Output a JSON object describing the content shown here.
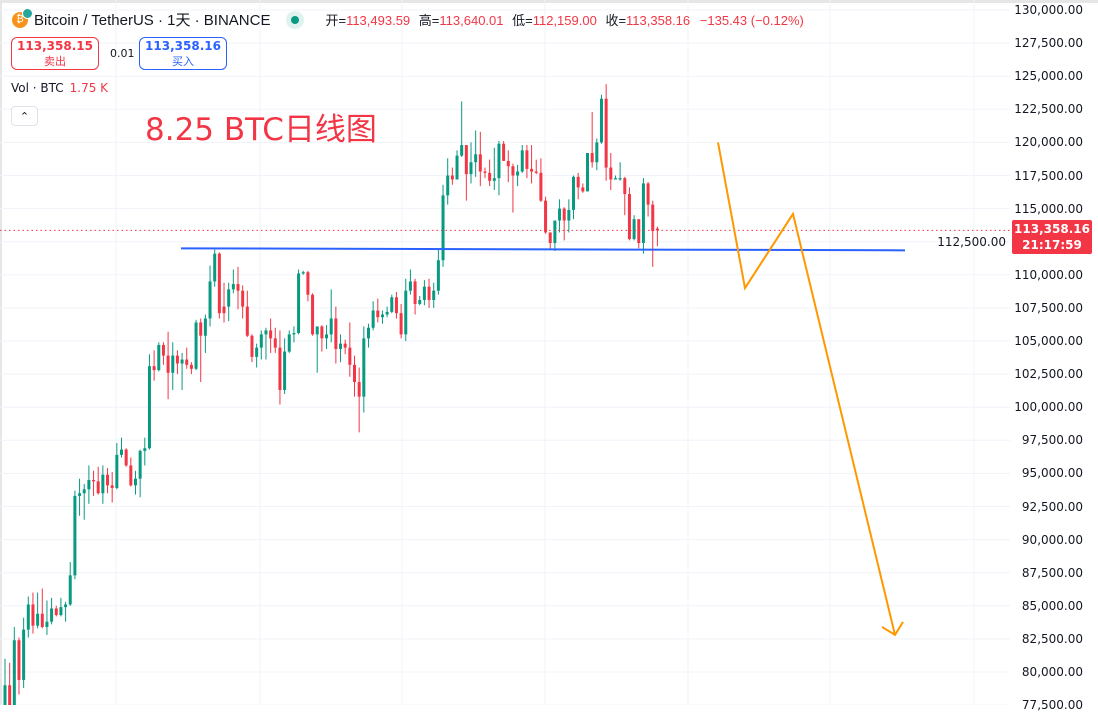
{
  "header": {
    "symbol_title": "Bitcoin / TetherUS · 1天 · BINANCE",
    "ohlc": [
      {
        "label": "开=",
        "value": "113,493.59"
      },
      {
        "label": "高=",
        "value": "113,640.01"
      },
      {
        "label": "低=",
        "value": "112,159.00"
      },
      {
        "label": "收=",
        "value": "113,358.16"
      }
    ],
    "change": "−135.43 (−0.12%)",
    "market_status": "open"
  },
  "trade": {
    "sell_price": "113,358.15",
    "sell_label": "卖出",
    "spread": "0.01",
    "buy_price": "113,358.16",
    "buy_label": "买入"
  },
  "volume": {
    "label": "Vol · BTC",
    "value": "1.75 K"
  },
  "annotation_text": "8.25 BTC日线图",
  "price_tag": {
    "price": "113,358.16",
    "countdown": "21:17:59"
  },
  "colors": {
    "up": "#089981",
    "down": "#f23645",
    "support_line": "#2962ff",
    "projection": "#ff9800",
    "accent": "#f23645"
  },
  "chart_data": {
    "type": "candlestick",
    "interval": "1天",
    "ylim": [
      77500,
      130000
    ],
    "y_tick_labels": [
      "130,000.00",
      "127,500.00",
      "125,000.00",
      "122,500.00",
      "120,000.00",
      "117,500.00",
      "115,000.00",
      "112,500.00",
      "110,000.00",
      "107,500.00",
      "105,000.00",
      "102,500.00",
      "100,000.00",
      "97,500.00",
      "95,000.00",
      "92,500.00",
      "90,000.00",
      "87,500.00",
      "85,000.00",
      "82,500.00",
      "80,000.00",
      "77,500.00"
    ],
    "grid": true,
    "last_price": 113358.16,
    "support_level": 112000,
    "projection_prices": [
      120000,
      109000,
      114600,
      82800
    ],
    "candles_ohlc": [
      [
        77500,
        81000,
        77400,
        79000
      ],
      [
        79000,
        80700,
        77400,
        77500
      ],
      [
        77500,
        83400,
        77400,
        82400
      ],
      [
        82400,
        82600,
        78300,
        79400
      ],
      [
        79400,
        84100,
        78800,
        83200
      ],
      [
        83200,
        85700,
        82600,
        85100
      ],
      [
        85100,
        86000,
        82900,
        83500
      ],
      [
        83500,
        86000,
        83300,
        84400
      ],
      [
        84400,
        86300,
        83300,
        83400
      ],
      [
        83400,
        85400,
        82800,
        83800
      ],
      [
        83800,
        85600,
        83600,
        84800
      ],
      [
        84800,
        85000,
        84200,
        84300
      ],
      [
        84300,
        85600,
        84200,
        84900
      ],
      [
        84900,
        85300,
        83800,
        85100
      ],
      [
        85100,
        88300,
        85000,
        87300
      ],
      [
        87300,
        93700,
        87000,
        93300
      ],
      [
        93300,
        94600,
        91800,
        93500
      ],
      [
        93500,
        94200,
        91500,
        93800
      ],
      [
        93800,
        95600,
        92700,
        94500
      ],
      [
        94500,
        95200,
        93300,
        94400
      ],
      [
        94400,
        95500,
        93400,
        93500
      ],
      [
        93500,
        95600,
        92700,
        94900
      ],
      [
        94900,
        95400,
        93500,
        94100
      ],
      [
        94100,
        95100,
        92800,
        93900
      ],
      [
        93900,
        97300,
        93800,
        96400
      ],
      [
        96400,
        97700,
        96200,
        96800
      ],
      [
        96800,
        96900,
        95500,
        95600
      ],
      [
        95600,
        96200,
        94000,
        94100
      ],
      [
        94100,
        95200,
        93400,
        94600
      ],
      [
        94600,
        96800,
        93200,
        96700
      ],
      [
        96700,
        97700,
        95600,
        96900
      ],
      [
        96900,
        104000,
        96800,
        103100
      ],
      [
        103100,
        104300,
        102000,
        102800
      ],
      [
        102800,
        104900,
        102700,
        104700
      ],
      [
        104700,
        104900,
        103200,
        103900
      ],
      [
        103900,
        105700,
        100600,
        102600
      ],
      [
        102600,
        104900,
        101300,
        103900
      ],
      [
        103900,
        104300,
        102500,
        103300
      ],
      [
        103300,
        104100,
        101300,
        103600
      ],
      [
        103600,
        104500,
        102900,
        103200
      ],
      [
        103200,
        103400,
        102500,
        102900
      ],
      [
        102900,
        106600,
        102800,
        106400
      ],
      [
        106400,
        106700,
        101900,
        105400
      ],
      [
        105400,
        107000,
        104100,
        106700
      ],
      [
        106700,
        110700,
        106100,
        109500
      ],
      [
        109500,
        111900,
        109100,
        111600
      ],
      [
        111600,
        111700,
        106700,
        107100
      ],
      [
        107600,
        109400,
        106400,
        107100
      ],
      [
        107600,
        109400,
        106500,
        108900
      ],
      [
        108900,
        110400,
        108600,
        109300
      ],
      [
        109300,
        110600,
        107400,
        108800
      ],
      [
        108800,
        109200,
        106700,
        107600
      ],
      [
        107600,
        108800,
        105300,
        105400
      ],
      [
        105400,
        105500,
        103400,
        103800
      ],
      [
        103800,
        104800,
        103000,
        104500
      ],
      [
        104500,
        105800,
        103600,
        105500
      ],
      [
        105500,
        106000,
        103600,
        105800
      ],
      [
        105800,
        106700,
        104100,
        105200
      ],
      [
        105200,
        106000,
        104100,
        104500
      ],
      [
        104500,
        105800,
        100200,
        101300
      ],
      [
        101300,
        105200,
        101000,
        104200
      ],
      [
        104200,
        105800,
        104100,
        105500
      ],
      [
        105500,
        106100,
        104900,
        105600
      ],
      [
        105600,
        110400,
        105500,
        110100
      ],
      [
        110100,
        110300,
        110000,
        110200
      ],
      [
        110200,
        110300,
        108000,
        108500
      ],
      [
        108500,
        108600,
        105400,
        105500
      ],
      [
        105500,
        106100,
        102600,
        106100
      ],
      [
        106100,
        106200,
        104200,
        105200
      ],
      [
        105200,
        106200,
        104400,
        105500
      ],
      [
        105500,
        108900,
        104900,
        106700
      ],
      [
        106700,
        107600,
        103300,
        104400
      ],
      [
        104400,
        105500,
        103400,
        104800
      ],
      [
        104800,
        105100,
        104000,
        104500
      ],
      [
        104500,
        106400,
        102300,
        103200
      ],
      [
        103200,
        103900,
        100800,
        101900
      ],
      [
        101900,
        103000,
        98100,
        100800
      ],
      [
        100800,
        106100,
        99600,
        105200
      ],
      [
        105200,
        106300,
        104500,
        106000
      ],
      [
        106000,
        108000,
        105800,
        107300
      ],
      [
        107300,
        108200,
        106400,
        106800
      ],
      [
        106800,
        107300,
        106300,
        107000
      ],
      [
        107000,
        107600,
        106800,
        107200
      ],
      [
        107200,
        108500,
        107100,
        108300
      ],
      [
        108300,
        108700,
        106700,
        107100
      ],
      [
        107100,
        107800,
        105200,
        105500
      ],
      [
        105500,
        109700,
        105000,
        108800
      ],
      [
        108800,
        110400,
        108500,
        109500
      ],
      [
        109500,
        109700,
        107000,
        107800
      ],
      [
        107800,
        108400,
        107700,
        108100
      ],
      [
        108100,
        109600,
        107700,
        109100
      ],
      [
        109100,
        109700,
        107500,
        108100
      ],
      [
        108100,
        109400,
        107500,
        108800
      ],
      [
        108800,
        111900,
        108500,
        111100
      ],
      [
        111100,
        116800,
        110600,
        116000
      ],
      [
        116000,
        118800,
        115300,
        117500
      ],
      [
        117500,
        118100,
        116800,
        117200
      ],
      [
        117200,
        119400,
        117200,
        119000
      ],
      [
        119000,
        123100,
        118900,
        119800
      ],
      [
        119800,
        119800,
        115600,
        117600
      ],
      [
        117600,
        120000,
        116900,
        118500
      ],
      [
        118500,
        120900,
        117400,
        119100
      ],
      [
        119100,
        120800,
        116700,
        117800
      ],
      [
        117800,
        118100,
        117300,
        117700
      ],
      [
        117700,
        118700,
        116700,
        117100
      ],
      [
        117100,
        119600,
        116400,
        117300
      ],
      [
        117300,
        120100,
        116000,
        119900
      ],
      [
        119900,
        120100,
        118600,
        118600
      ],
      [
        118600,
        119400,
        117000,
        118200
      ],
      [
        118200,
        118400,
        114700,
        117500
      ],
      [
        117500,
        118300,
        116700,
        117800
      ],
      [
        117800,
        119800,
        117700,
        119400
      ],
      [
        119400,
        119800,
        117300,
        118000
      ],
      [
        118000,
        119800,
        116900,
        117800
      ],
      [
        117800,
        118700,
        117600,
        117700
      ],
      [
        117700,
        118800,
        115500,
        115600
      ],
      [
        115600,
        115900,
        113100,
        113200
      ],
      [
        113200,
        113200,
        111900,
        112400
      ],
      [
        112400,
        114100,
        111800,
        114100
      ],
      [
        114100,
        115700,
        113200,
        115000
      ],
      [
        115000,
        115100,
        112600,
        114100
      ],
      [
        114100,
        115700,
        113200,
        114900
      ],
      [
        114900,
        117500,
        114200,
        117400
      ],
      [
        117400,
        117700,
        115700,
        116600
      ],
      [
        116600,
        116900,
        116200,
        116300
      ],
      [
        116300,
        119200,
        116300,
        119200
      ],
      [
        119200,
        122300,
        118100,
        118500
      ],
      [
        118500,
        120300,
        117900,
        120000
      ],
      [
        120000,
        123600,
        119900,
        123300
      ],
      [
        123300,
        124400,
        117100,
        118100
      ],
      [
        118100,
        119200,
        116400,
        117200
      ],
      [
        117200,
        117500,
        117200,
        117300
      ],
      [
        117200,
        118500,
        117100,
        117300
      ],
      [
        117300,
        117400,
        114500,
        116100
      ],
      [
        116100,
        116600,
        112600,
        112700
      ],
      [
        112700,
        114500,
        112600,
        114200
      ],
      [
        114200,
        114200,
        112000,
        112400
      ],
      [
        112400,
        117300,
        111600,
        116900
      ],
      [
        116900,
        117000,
        114400,
        115300
      ],
      [
        115300,
        115600,
        110600,
        113300
      ],
      [
        113493.59,
        113640.01,
        112159,
        113358.16
      ]
    ]
  }
}
